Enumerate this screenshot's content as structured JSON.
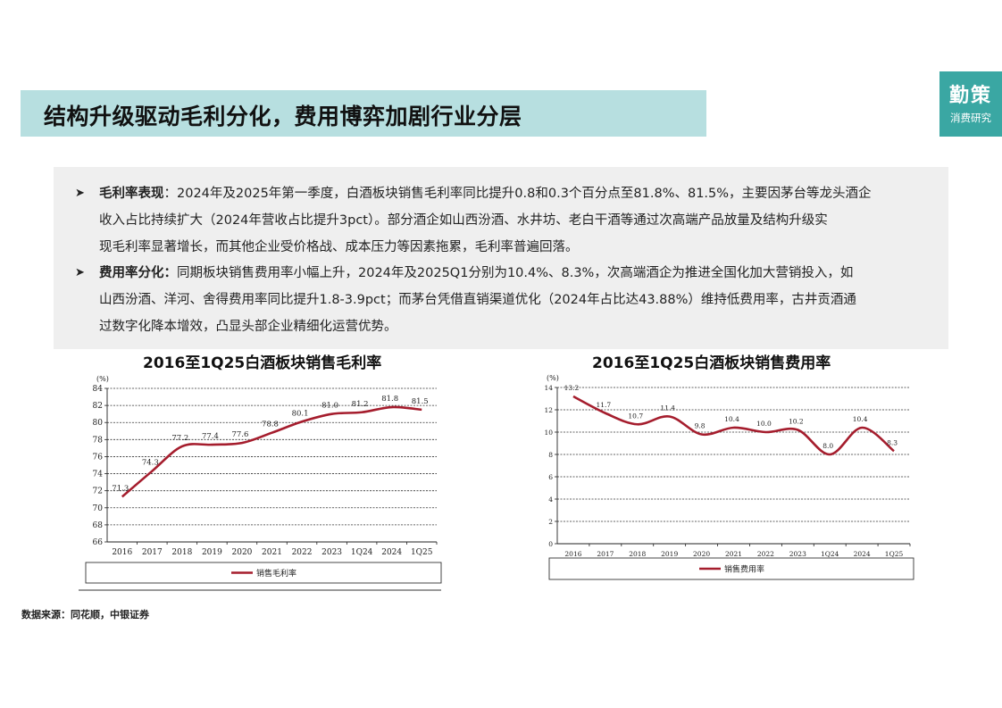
{
  "header": {
    "title": "结构升级驱动毛利分化，费用博弈加剧行业分层"
  },
  "logo": {
    "main": "勤策",
    "sub": "消费研究"
  },
  "bullets": [
    {
      "mark": "➤",
      "label": "毛利率表现",
      "lines": [
        "：2024年及2025年第一季度，白酒板块销售毛利率同比提升0.8和0.3个百分点至81.8%、81.5%，主要因茅台等龙头酒企",
        "收入占比持续扩大（2024年营收占比提升3pct）。部分酒企如山西汾酒、水井坊、老白干酒等通过次高端产品放量及结构升级实",
        "现毛利率显著增长，而其他企业受价格战、成本压力等因素拖累，毛利率普遍回落。"
      ]
    },
    {
      "mark": "➤",
      "label": "费用率分化：",
      "lines": [
        "同期板块销售费用率小幅上升，2024年及2025Q1分别为10.4%、8.3%，次高端酒企为推进全国化加大营销投入，如",
        "山西汾酒、洋河、舍得费用率同比提升1.8-3.9pct；而茅台凭借直销渠道优化（2024年占比达43.88%）维持低费用率，古井贡酒通",
        "过数字化降本增效，凸显头部企业精细化运营优势。"
      ]
    }
  ],
  "chart_data": [
    {
      "type": "line",
      "title": "2016至1Q25白酒板块销售毛利率",
      "unit": "(%)",
      "categories": [
        "2016",
        "2017",
        "2018",
        "2019",
        "2020",
        "2021",
        "2022",
        "2023",
        "1Q24",
        "2024",
        "1Q25"
      ],
      "series": [
        {
          "name": "销售毛利率",
          "values": [
            71.3,
            74.3,
            77.2,
            77.4,
            77.6,
            78.8,
            80.1,
            81.0,
            81.2,
            81.8,
            81.5
          ],
          "labels": [
            "71.3",
            "74.3",
            "77.2",
            "77.4",
            "77.6",
            "78.8",
            "80.1",
            "81.0",
            "81.2",
            "81.8",
            "81.5"
          ]
        }
      ],
      "ylim": [
        66,
        84
      ],
      "yticks": [
        66,
        68,
        70,
        72,
        74,
        76,
        78,
        80,
        82,
        84
      ],
      "grid": true,
      "legend": "bottom",
      "color": "#a51d2d"
    },
    {
      "type": "line",
      "title": "2016至1Q25白酒板块销售费用率",
      "unit": "(%)",
      "categories": [
        "2016",
        "2017",
        "2018",
        "2019",
        "2020",
        "2021",
        "2022",
        "2023",
        "1Q24",
        "2024",
        "1Q25"
      ],
      "series": [
        {
          "name": "销售费用率",
          "values": [
            13.2,
            11.7,
            10.7,
            11.4,
            9.8,
            10.4,
            10.0,
            10.2,
            8.0,
            10.4,
            8.3
          ],
          "labels": [
            "13.2",
            "11.7",
            "10.7",
            "11.4",
            "9.8",
            "10.4",
            "10.0",
            "10.2",
            "8.0",
            "10.4",
            "8.3"
          ]
        }
      ],
      "ylim": [
        0,
        14
      ],
      "yticks": [
        0,
        2,
        4,
        6,
        8,
        10,
        12,
        14
      ],
      "grid": true,
      "legend": "bottom",
      "color": "#a51d2d"
    }
  ],
  "source": "数据来源：同花顺，中银证券"
}
